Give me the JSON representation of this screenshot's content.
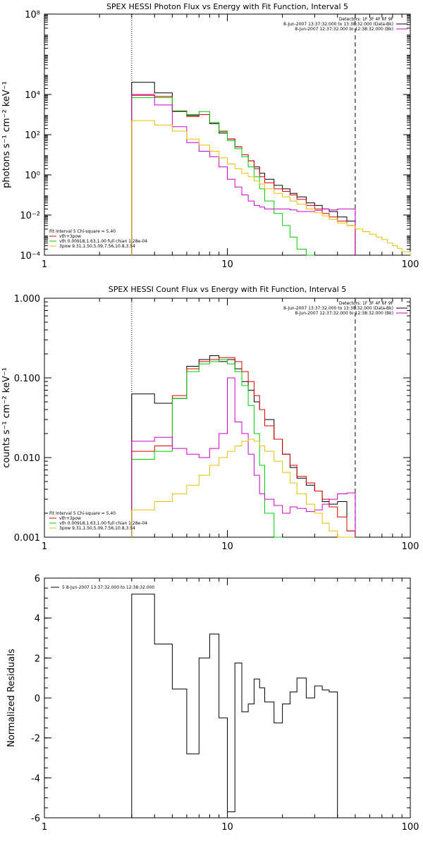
{
  "chart_data": [
    {
      "type": "line",
      "title": "SPEX HESSI Photon Flux vs Energy with Fit Function, Interval 5",
      "ylabel": "photons s⁻¹ cm⁻² keV⁻¹",
      "xscale": "log",
      "yscale": "log",
      "xlim": [
        1,
        100
      ],
      "ylim": [
        0.0001,
        100000000
      ],
      "xticks": [
        1,
        10,
        100
      ],
      "xtick_labels": [
        "1",
        "10",
        "100"
      ],
      "yticks": [
        0.0001,
        0.01,
        1,
        100,
        10000,
        100000000
      ],
      "ytick_labels": [
        "10⁻⁴",
        "10⁻²",
        "10⁰",
        "10²",
        "10⁴",
        "10⁸"
      ],
      "vlines": [
        {
          "x": 3.0,
          "style": "dotted"
        },
        {
          "x": 50.0,
          "style": "dashed"
        }
      ],
      "header_lines": [
        "Detectors: 1F 3F 4F 6F 9F",
        "8-Jun-2007 13:37:32.000 to 13:38:32.000 (Data-Bk)",
        "8-Jun-2007 12:37:32.000 to 12:38:32.000 (Bk)"
      ],
      "header_colors": [
        "#000000",
        "#cc00cc"
      ],
      "legend": {
        "position": "bottom-left",
        "title": "Fit Interval 5   Chi-square = 5.40",
        "entries": [
          {
            "label": "vth+3pow",
            "color": "#dd0000"
          },
          {
            "label": "vth 0.00918,1.63,1.00  full chian 1.28e-04",
            "color": "#00cc00"
          },
          {
            "label": "3pow 9.31,1.50,5.09,7.56,10.8,3.54",
            "color": "#e8c000"
          }
        ]
      },
      "edges": [
        3,
        4,
        5,
        6,
        7,
        8,
        9,
        10,
        11,
        12,
        13,
        14,
        15,
        16,
        18,
        20,
        22,
        24,
        27,
        30,
        33,
        36,
        40,
        45,
        50,
        55,
        60,
        65,
        70,
        75,
        80,
        85,
        90,
        100
      ],
      "series": [
        {
          "name": "Data-Bk",
          "color": "#000000",
          "values": [
            40000,
            12000,
            1500,
            900,
            1000,
            350,
            120,
            60,
            25,
            10,
            5,
            2.5,
            1.2,
            0.6,
            0.3,
            0.2,
            0.12,
            0.08,
            0.04,
            0.03,
            0.02,
            0.015,
            0.008,
            0.005,
            null,
            null,
            null,
            null,
            null,
            null,
            null,
            null,
            null
          ]
        },
        {
          "name": "vth+3pow",
          "color": "#dd0000",
          "values": [
            9000,
            8000,
            1400,
            800,
            1000,
            400,
            150,
            60,
            25,
            10,
            5,
            2,
            0.8,
            0.4,
            0.2,
            0.15,
            0.1,
            0.06,
            0.03,
            0.02,
            0.012,
            0.008,
            0.005,
            0.003,
            null,
            null,
            null,
            null,
            null,
            null,
            null,
            null,
            null
          ]
        },
        {
          "name": "vth",
          "color": "#00cc00",
          "values": [
            7000,
            7000,
            1400,
            1000,
            1400,
            400,
            140,
            50,
            20,
            8,
            2.5,
            0.8,
            0.2,
            0.05,
            0.012,
            0.003,
            0.0008,
            0.0002,
            0.0001,
            null,
            null,
            null,
            null,
            null,
            null,
            null,
            null,
            null,
            null,
            null,
            null,
            null,
            null
          ]
        },
        {
          "name": "Bk",
          "color": "#cc00cc",
          "values": [
            10000,
            3000,
            250,
            40,
            15,
            8,
            2.5,
            0.6,
            0.25,
            0.1,
            0.05,
            0.03,
            0.025,
            0.02,
            0.02,
            0.02,
            0.018,
            0.015,
            0.015,
            0.017,
            0.02,
            0.018,
            0.02,
            0.02,
            null,
            null,
            null,
            null,
            null,
            null,
            null,
            null,
            null
          ]
        },
        {
          "name": "3pow",
          "color": "#e8c000",
          "values": [
            500,
            300,
            150,
            60,
            30,
            15,
            7,
            3.5,
            2,
            1.2,
            0.8,
            0.5,
            0.35,
            0.2,
            0.12,
            0.08,
            0.05,
            0.035,
            0.02,
            0.013,
            0.009,
            0.006,
            0.004,
            0.003,
            0.002,
            0.0015,
            0.0011,
            0.0008,
            0.0006,
            0.0004,
            0.0003,
            0.00022,
            0.00015
          ]
        }
      ]
    },
    {
      "type": "line",
      "title": "SPEX HESSI Count Flux vs Energy with Fit Function, Interval 5",
      "ylabel": "counts s⁻¹ cm⁻² keV⁻¹",
      "xscale": "log",
      "yscale": "log",
      "xlim": [
        1,
        100
      ],
      "ylim": [
        0.001,
        1.0
      ],
      "xticks": [
        1,
        10,
        100
      ],
      "xtick_labels": [
        "1",
        "10",
        "100"
      ],
      "yticks": [
        0.001,
        0.01,
        0.1,
        1.0
      ],
      "ytick_labels": [
        "0.001",
        "0.010",
        "0.100",
        "1.000"
      ],
      "vlines": [
        {
          "x": 3.0,
          "style": "dotted"
        },
        {
          "x": 50.0,
          "style": "dashed"
        }
      ],
      "header_lines": [
        "Detectors: 1F 3F 4F 6F 9F",
        "8-Jun-2007 13:37:32.000 to 13:38:32.000 (Data-Bk)",
        "8-Jun-2007 12:37:32.000 to 12:38:32.000 (Bk)"
      ],
      "header_colors": [
        "#000000",
        "#cc00cc"
      ],
      "legend": {
        "position": "bottom-left",
        "title": "Fit Interval 5   Chi-square = 5.40",
        "entries": [
          {
            "label": "vth+3pow",
            "color": "#dd0000"
          },
          {
            "label": "vth 0.00918,1.63,1.00  full chian 1.28e-04",
            "color": "#00cc00"
          },
          {
            "label": "3pow 9.31,1.50,5.09,7.56,10.8,3.54",
            "color": "#e8c000"
          }
        ]
      },
      "edges": [
        3,
        4,
        5,
        6,
        7,
        8,
        9,
        10,
        11,
        12,
        13,
        14,
        15,
        16,
        18,
        20,
        22,
        24,
        27,
        30,
        33,
        36,
        40,
        45,
        50
      ],
      "series": [
        {
          "name": "Data-Bk",
          "color": "#000000",
          "values": [
            0.063,
            0.048,
            0.055,
            0.14,
            0.17,
            0.19,
            0.16,
            0.17,
            0.13,
            0.09,
            0.07,
            0.05,
            0.04,
            0.03,
            0.017,
            0.011,
            0.0075,
            0.0055,
            0.0045,
            0.0038,
            0.0028,
            0.0026,
            0.0028,
            0.0012
          ]
        },
        {
          "name": "vth+3pow",
          "color": "#dd0000",
          "values": [
            0.012,
            0.014,
            0.06,
            0.13,
            0.16,
            0.17,
            0.18,
            0.18,
            0.16,
            0.12,
            0.09,
            0.06,
            0.04,
            0.025,
            0.017,
            0.011,
            0.008,
            0.0058,
            0.0048,
            0.0038,
            0.003,
            0.0024,
            0.0018,
            0.0012
          ]
        },
        {
          "name": "vth",
          "color": "#00cc00",
          "values": [
            0.0095,
            0.012,
            0.055,
            0.12,
            0.15,
            0.16,
            0.17,
            0.15,
            0.12,
            0.08,
            0.045,
            0.02,
            0.008,
            0.002,
            0.001,
            null,
            null,
            null,
            null,
            null,
            null,
            null,
            null,
            null
          ]
        },
        {
          "name": "Bk",
          "color": "#cc00cc",
          "values": [
            0.016,
            0.018,
            0.013,
            0.011,
            0.01,
            0.013,
            0.02,
            0.1,
            0.028,
            0.02,
            0.011,
            0.006,
            0.0035,
            0.003,
            0.0025,
            0.002,
            0.0024,
            0.0023,
            0.0021,
            0.0022,
            0.0026,
            0.003,
            0.0035,
            0.0036
          ]
        },
        {
          "name": "3pow",
          "color": "#e8c000",
          "values": [
            0.0022,
            0.0028,
            0.0035,
            0.0045,
            0.006,
            0.008,
            0.01,
            0.012,
            0.014,
            0.016,
            0.017,
            0.016,
            0.014,
            0.012,
            0.009,
            0.0065,
            0.0048,
            0.0035,
            0.0026,
            0.002,
            0.0015,
            0.0012,
            0.001,
            0.001
          ]
        }
      ]
    },
    {
      "type": "line",
      "title": "",
      "ylabel": "Normalized Residuals",
      "xscale": "log",
      "yscale": "linear",
      "xlim": [
        1,
        100
      ],
      "ylim": [
        -6,
        6
      ],
      "xticks": [
        1,
        10,
        100
      ],
      "xtick_labels": [
        "1",
        "10",
        "100"
      ],
      "yticks": [
        -6,
        -4,
        -2,
        0,
        2,
        4,
        6
      ],
      "ytick_labels": [
        "-6",
        "-4",
        "-2",
        "0",
        "2",
        "4",
        "6"
      ],
      "legend": {
        "position": "top-left",
        "entries": [
          {
            "label": "5  8-Jun-2007 13:37:32.000 to 12:38:32.000",
            "color": "#000000"
          }
        ]
      },
      "edges": [
        3,
        4,
        5,
        6,
        7,
        8,
        9,
        10,
        11,
        12,
        13,
        14,
        15,
        16,
        18,
        20,
        22,
        24,
        27,
        30,
        33,
        36,
        40,
        45,
        50
      ],
      "series": [
        {
          "name": "Residual",
          "color": "#000000",
          "values": [
            5.2,
            2.7,
            0.45,
            -2.8,
            2.0,
            3.2,
            -1.0,
            -5.7,
            1.75,
            -0.7,
            -0.3,
            0.95,
            0.5,
            -0.2,
            -1.25,
            -0.3,
            0.3,
            1.0,
            0.0,
            0.6,
            0.4,
            0.3,
            null,
            null
          ]
        }
      ]
    }
  ]
}
